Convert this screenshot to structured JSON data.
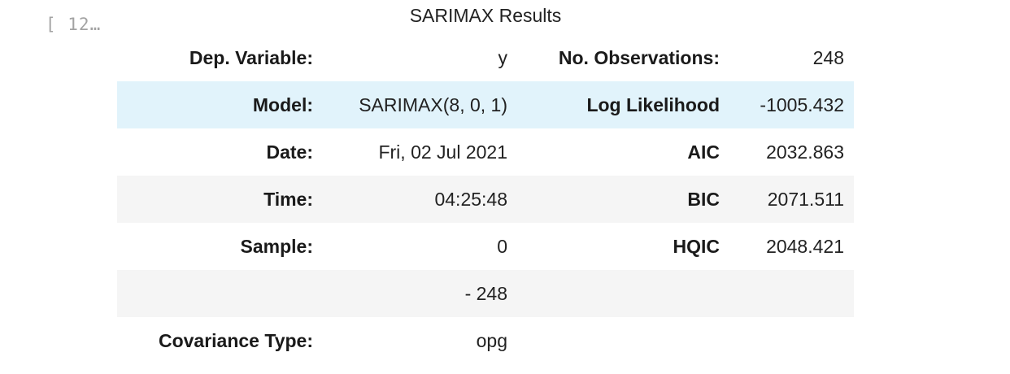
{
  "cell": {
    "prompt": "[ 12…",
    "caption": "SARIMAX Results"
  },
  "rows": [
    {
      "l1": "Dep. Variable:",
      "v1": "y",
      "l2": "No. Observations:",
      "v2": "248"
    },
    {
      "l1": "Model:",
      "v1": "SARIMAX(8, 0, 1)",
      "l2": "Log Likelihood",
      "v2": "-1005.432"
    },
    {
      "l1": "Date:",
      "v1": "Fri, 02 Jul 2021",
      "l2": "AIC",
      "v2": "2032.863"
    },
    {
      "l1": "Time:",
      "v1": "04:25:48",
      "l2": "BIC",
      "v2": "2071.511"
    },
    {
      "l1": "Sample:",
      "v1": "0",
      "l2": "HQIC",
      "v2": "2048.421"
    },
    {
      "l1": "",
      "v1": "- 248",
      "l2": "",
      "v2": ""
    },
    {
      "l1": "Covariance Type:",
      "v1": "opg",
      "l2": "",
      "v2": ""
    }
  ],
  "colors": {
    "row_hover": "#e1f3fb",
    "row_stripe": "#f5f5f5",
    "prompt": "#a3a3a3"
  }
}
